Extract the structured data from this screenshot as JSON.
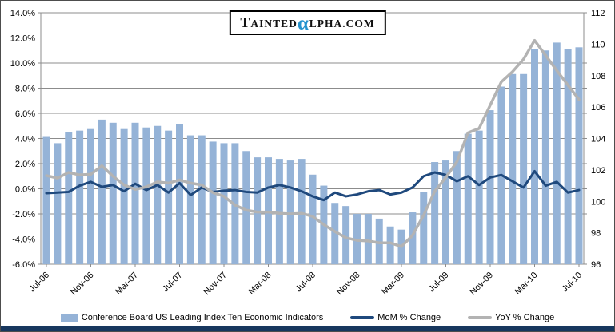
{
  "logo": {
    "t": "T",
    "ainted": "AINTED",
    "alpha": "α",
    "rest": "LPHA.COM",
    "alpha_color": "#2493CE"
  },
  "colors": {
    "bar_fill": "#95B3D7",
    "mom_line": "#1F497D",
    "yoy_line": "#B3B3B3",
    "gridline": "#8C8C8C",
    "bottom_strip": "#17375E"
  },
  "chart_data": {
    "type": "bar",
    "subtype": "bar-line combo, dual axis",
    "months": [
      "Jul-06",
      "Aug-06",
      "Sep-06",
      "Oct-06",
      "Nov-06",
      "Dec-06",
      "Jan-07",
      "Feb-07",
      "Mar-07",
      "Apr-07",
      "May-07",
      "Jun-07",
      "Jul-07",
      "Aug-07",
      "Sep-07",
      "Oct-07",
      "Nov-07",
      "Dec-07",
      "Jan-08",
      "Feb-08",
      "Mar-08",
      "Apr-08",
      "May-08",
      "Jun-08",
      "Jul-08",
      "Aug-08",
      "Sep-08",
      "Oct-08",
      "Nov-08",
      "Dec-08",
      "Jan-09",
      "Feb-09",
      "Mar-09",
      "Apr-09",
      "May-09",
      "Jun-09",
      "Jul-09",
      "Aug-09",
      "Sep-09",
      "Oct-09",
      "Nov-09",
      "Dec-09",
      "Jan-10",
      "Feb-10",
      "Mar-10",
      "Apr-10",
      "May-10",
      "Jun-10",
      "Jul-10"
    ],
    "x_tick_labels": [
      "Jul-06",
      "Nov-06",
      "Mar-07",
      "Jul-07",
      "Nov-07",
      "Mar-08",
      "Jul-08",
      "Nov-08",
      "Mar-09",
      "Jul-09",
      "Nov-09",
      "Mar-10",
      "Jul-10"
    ],
    "series": [
      {
        "name": "Conference Board US Leading Index Ten Economic Indicators",
        "type": "bar",
        "axis": "right",
        "color": "#95B3D7",
        "values": [
          104.1,
          103.7,
          104.4,
          104.5,
          104.6,
          105.2,
          105.0,
          104.6,
          105.0,
          104.7,
          104.8,
          104.5,
          104.9,
          104.2,
          104.2,
          103.8,
          103.7,
          103.7,
          103.2,
          102.8,
          102.8,
          102.7,
          102.6,
          102.7,
          101.7,
          101.0,
          99.9,
          99.7,
          99.2,
          99.2,
          98.9,
          98.4,
          98.2,
          99.3,
          100.6,
          102.5,
          102.6,
          103.2,
          104.3,
          104.5,
          105.8,
          107.3,
          108.1,
          108.1,
          109.7,
          109.6,
          110.1,
          109.7,
          109.8
        ]
      },
      {
        "name": "MoM % Change",
        "type": "line",
        "axis": "left",
        "color": "#1F497D",
        "values": [
          -0.35,
          -0.3,
          -0.25,
          0.25,
          0.55,
          0.15,
          0.3,
          -0.2,
          0.4,
          -0.1,
          0.3,
          -0.3,
          0.45,
          -0.5,
          0.1,
          -0.25,
          -0.15,
          -0.1,
          -0.25,
          -0.3,
          0.1,
          0.3,
          0.1,
          -0.2,
          -0.6,
          -0.9,
          -0.3,
          -0.6,
          -0.45,
          -0.2,
          -0.1,
          -0.45,
          -0.3,
          0.1,
          1.0,
          1.3,
          1.1,
          0.6,
          1.0,
          0.3,
          0.9,
          1.1,
          0.6,
          0.1,
          1.4,
          0.25,
          0.55,
          -0.3,
          -0.1
        ]
      },
      {
        "name": "YoY % Change",
        "type": "line",
        "axis": "left",
        "color": "#B3B3B3",
        "values": [
          1.05,
          0.85,
          1.3,
          1.1,
          1.15,
          1.83,
          1.0,
          0.3,
          -0.05,
          0.15,
          0.55,
          0.45,
          0.7,
          0.45,
          0.3,
          -0.3,
          -0.6,
          -1.3,
          -1.7,
          -1.85,
          -1.85,
          -1.95,
          -2.0,
          -1.95,
          -2.2,
          -2.85,
          -3.4,
          -3.9,
          -4.1,
          -4.15,
          -4.3,
          -4.3,
          -4.6,
          -3.7,
          -2.1,
          -0.2,
          0.9,
          2.15,
          4.45,
          4.8,
          6.65,
          8.5,
          9.3,
          10.3,
          11.8,
          10.6,
          9.4,
          8.25,
          7.1
        ]
      }
    ],
    "left_axis": {
      "min": -6,
      "max": 14,
      "step": 2,
      "ticks": [
        "14.0%",
        "12.0%",
        "10.0%",
        "8.0%",
        "6.0%",
        "4.0%",
        "2.0%",
        "0.0%",
        "-2.0%",
        "-4.0%",
        "-6.0%"
      ]
    },
    "right_axis": {
      "min": 96,
      "max": 112,
      "step": 2,
      "ticks": [
        "112",
        "110",
        "108",
        "106",
        "104",
        "102",
        "100",
        "98",
        "96"
      ]
    },
    "grid": true,
    "legend_position": "bottom"
  }
}
